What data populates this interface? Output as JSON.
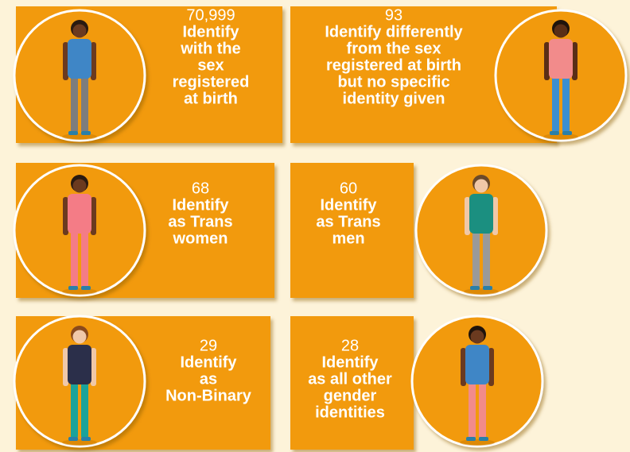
{
  "cards": [
    {
      "number": "70,999",
      "label_lines": [
        "Identify",
        "with the",
        "sex",
        "registered",
        "at birth"
      ]
    },
    {
      "number": "93",
      "label_lines": [
        "Identify differently",
        "from the sex",
        "registered at birth",
        "but no specific",
        "identity given"
      ]
    },
    {
      "number": "68",
      "label_lines": [
        "Identify",
        "as Trans",
        "women"
      ]
    },
    {
      "number": "60",
      "label_lines": [
        "Identify",
        "as Trans",
        "men"
      ]
    },
    {
      "number": "29",
      "label_lines": [
        "Identify",
        "as",
        "Non-Binary"
      ]
    },
    {
      "number": "28",
      "label_lines": [
        "Identify",
        "as all other",
        "gender",
        "identities"
      ]
    }
  ]
}
